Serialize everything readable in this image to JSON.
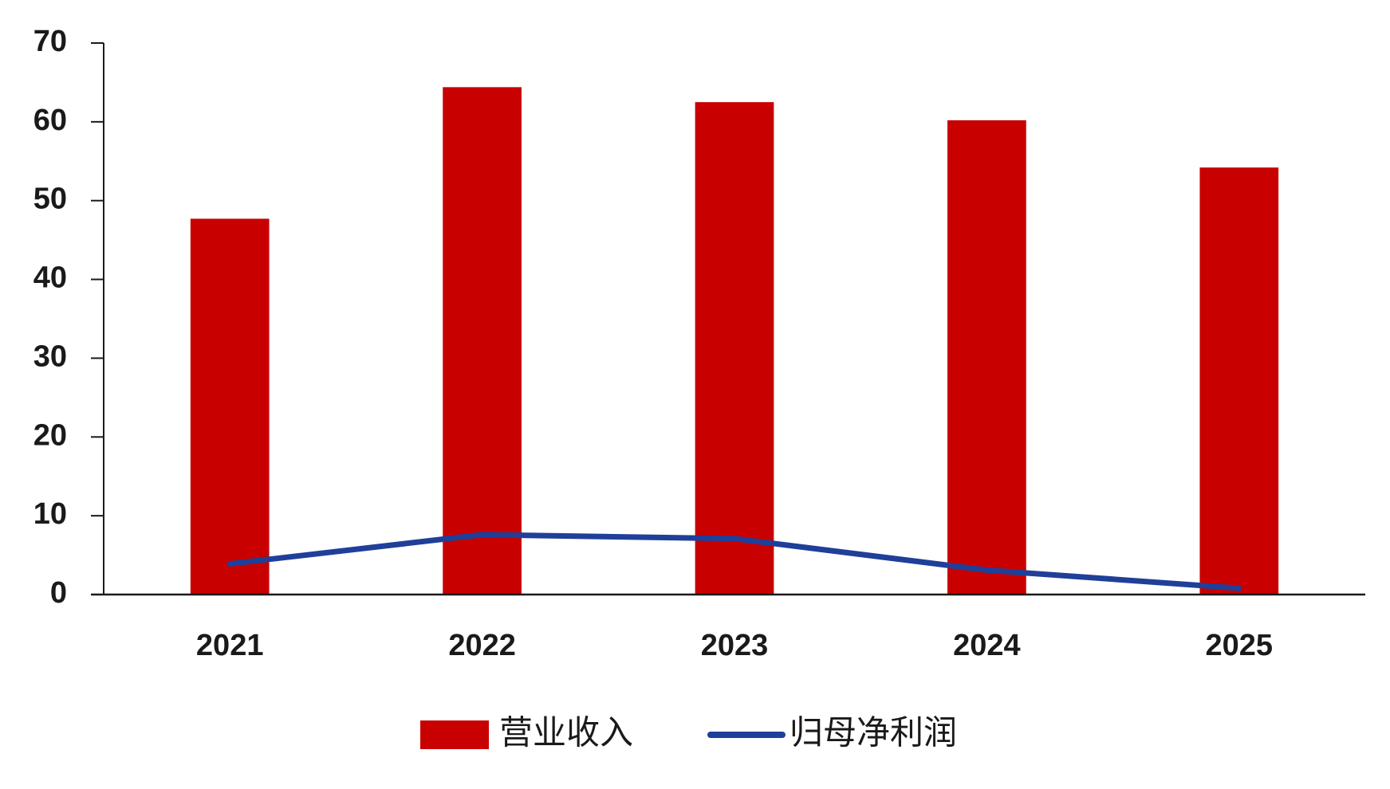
{
  "chart_data": {
    "type": "bar",
    "categories": [
      "2021",
      "2022",
      "2023",
      "2024",
      "2025"
    ],
    "series": [
      {
        "name": "营业收入",
        "type": "bar",
        "color": "#c80000",
        "values": [
          47.7,
          64.4,
          62.5,
          60.2,
          54.2
        ]
      },
      {
        "name": "归母净利润",
        "type": "line",
        "color": "#1f3f99",
        "values": [
          3.9,
          7.6,
          7.1,
          3.1,
          0.8
        ]
      }
    ],
    "ylim": [
      0,
      70
    ],
    "yticks": [
      0,
      10,
      20,
      30,
      40,
      50,
      60,
      70
    ],
    "grid": false,
    "legend": "bottom"
  }
}
